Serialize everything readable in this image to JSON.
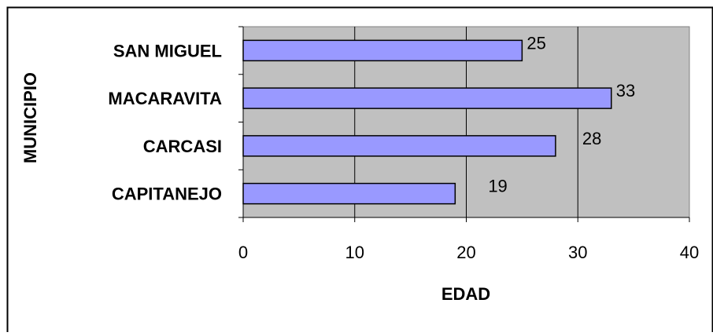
{
  "chart_data": {
    "type": "bar",
    "orientation": "horizontal",
    "categories": [
      "SAN MIGUEL",
      "MACARAVITA",
      "CARCASI",
      "CAPITANEJO"
    ],
    "values": [
      25,
      33,
      28,
      19
    ],
    "data_labels": [
      "25",
      "33",
      "28",
      "19"
    ],
    "xlabel": "EDAD",
    "ylabel": "MUNICIPIO",
    "xlim": [
      0,
      40
    ],
    "xticks": [
      0,
      10,
      20,
      30,
      40
    ],
    "xtick_labels": [
      "0",
      "10",
      "20",
      "30",
      "40"
    ],
    "grid": true,
    "legend": "none",
    "colors": {
      "bar_fill": "#9999ff",
      "bar_stroke": "#000000",
      "plot_background": "#c0c0c0",
      "gridline": "#000000",
      "frame": "#000000",
      "page_background": "#ffffff"
    }
  }
}
